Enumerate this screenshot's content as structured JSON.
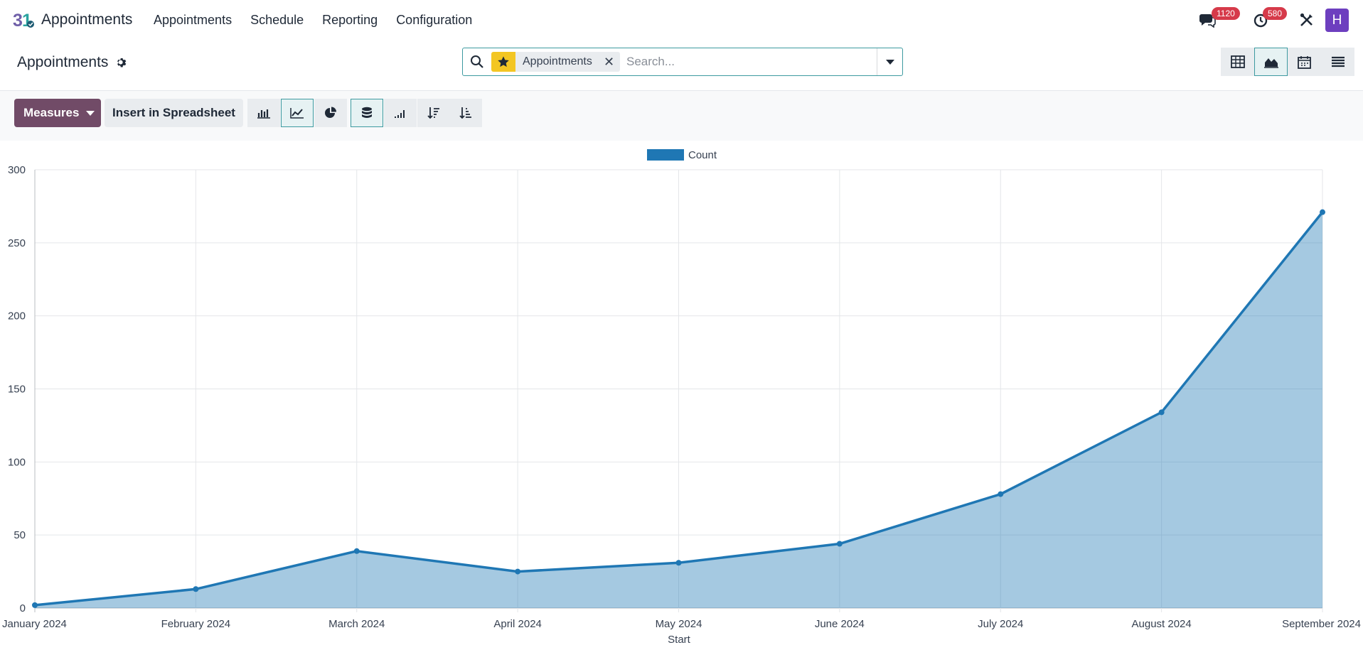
{
  "navbar": {
    "app_name": "Appointments",
    "menu": [
      "Appointments",
      "Schedule",
      "Reporting",
      "Configuration"
    ],
    "messages_count": "1120",
    "activities_count": "580",
    "avatar_letter": "H"
  },
  "control_panel": {
    "breadcrumb": "Appointments",
    "search": {
      "facet": "Appointments",
      "placeholder": "Search..."
    }
  },
  "toolbar": {
    "measures_label": "Measures",
    "insert_label": "Insert in Spreadsheet"
  },
  "colors": {
    "primary": "#714b67",
    "accent": "#3d9aa0",
    "series": "#1f77b4",
    "badge": "#d63a4a"
  },
  "chart_data": {
    "type": "area",
    "categories": [
      "January 2024",
      "February 2024",
      "March 2024",
      "April 2024",
      "May 2024",
      "June 2024",
      "July 2024",
      "August 2024",
      "September 2024"
    ],
    "series": [
      {
        "name": "Count",
        "values": [
          2,
          13,
          39,
          25,
          31,
          44,
          78,
          134,
          271
        ]
      }
    ],
    "xlabel": "Start",
    "ylabel": "",
    "ylim": [
      0,
      300
    ],
    "yticks": [
      0,
      50,
      100,
      150,
      200,
      250,
      300
    ],
    "grid": true,
    "legend": "top-center"
  }
}
